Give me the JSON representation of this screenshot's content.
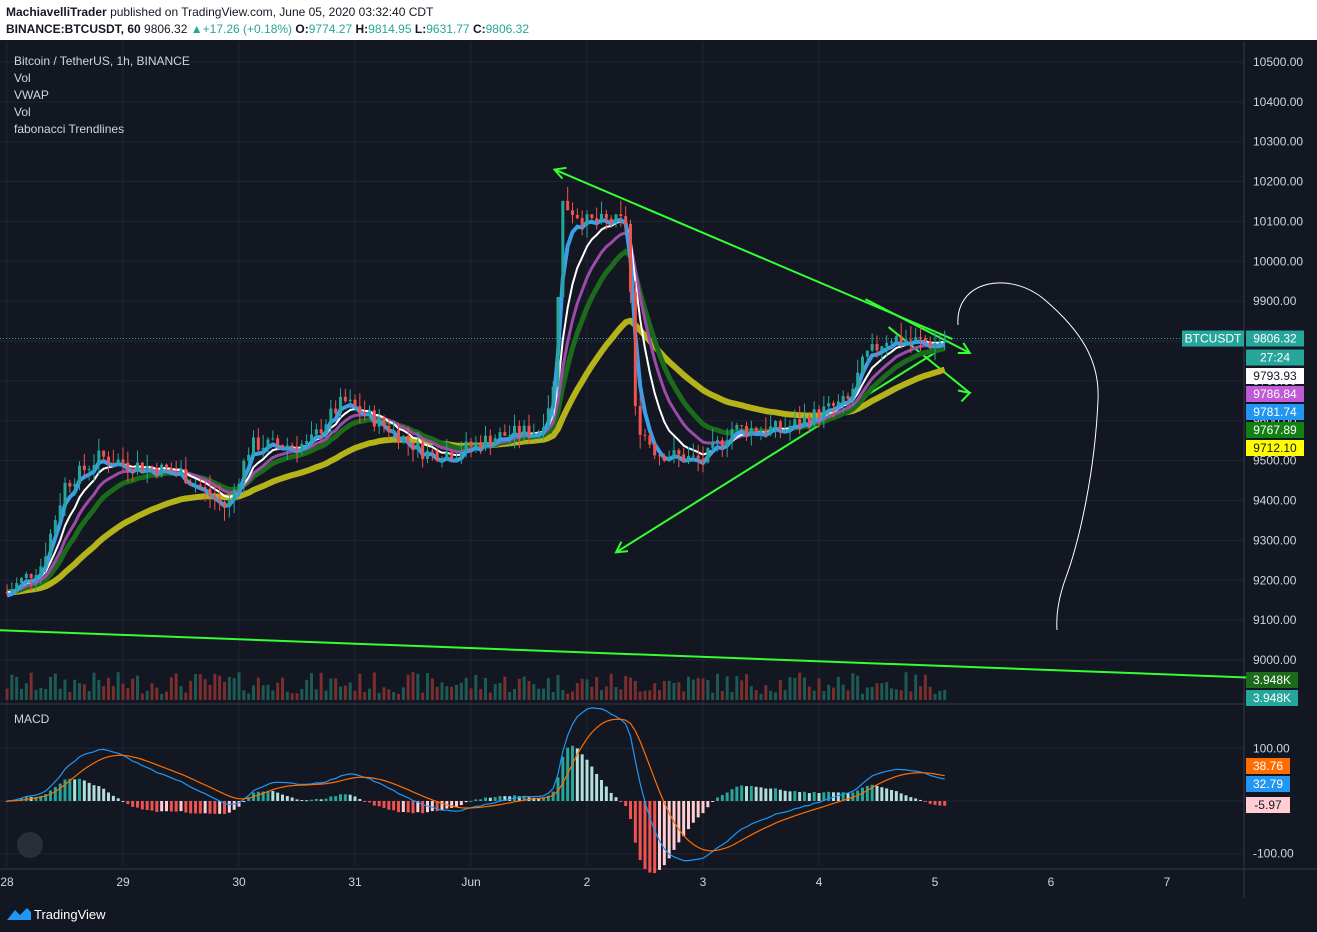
{
  "publish": {
    "author": "MachiavelliTrader",
    "text": "published on TradingView.com, June 05, 2020 03:32:40 CDT"
  },
  "symbol_line": {
    "symbol": "BINANCE:BTCUSDT, 60",
    "price": "9806.32",
    "change": "+17.26 (+0.18%)",
    "o_label": "O:",
    "o": "9774.27",
    "h_label": "H:",
    "h": "9814.95",
    "l_label": "L:",
    "l": "9631.77",
    "c_label": "C:",
    "c": "9806.32"
  },
  "legend": [
    "Bitcoin / TetherUS, 1h, BINANCE",
    "Vol",
    "VWAP",
    "Vol",
    "fabonacci Trendlines"
  ],
  "macd_label": "MACD",
  "footer_brand": "TradingView",
  "colors": {
    "background": "#131722",
    "up": "#26a69a",
    "down": "#ef5350",
    "trendline": "#33ff33",
    "vwap": "#b5b31a",
    "ema_blue": "#3a9fe8",
    "ema_white": "#ffffff",
    "ema_purple": "#9c4ca8",
    "ema_green": "#1c6b1c",
    "macd_line": "#2196f3",
    "signal_line": "#ff6d00"
  },
  "chart_data": {
    "type": "candlestick",
    "symbol": "BTCUSDT",
    "interval": "1h",
    "x_tick_labels": [
      "28",
      "29",
      "30",
      "31",
      "Jun",
      "2",
      "3",
      "4",
      "5",
      "6",
      "7"
    ],
    "y_tick_labels": [
      "10500.00",
      "10400.00",
      "10300.00",
      "10200.00",
      "10100.00",
      "10000.00",
      "9900.00",
      "9800.00",
      "9700.00",
      "9600.00",
      "9500.00",
      "9400.00",
      "9300.00",
      "9200.00",
      "9100.00",
      "9000.00"
    ],
    "ylim": [
      8900,
      10560
    ],
    "grid": true,
    "price_anchors": [
      {
        "day": 28.0,
        "price": 9170
      },
      {
        "day": 28.3,
        "price": 9240
      },
      {
        "day": 28.5,
        "price": 9440
      },
      {
        "day": 28.8,
        "price": 9510
      },
      {
        "day": 29.1,
        "price": 9490
      },
      {
        "day": 29.5,
        "price": 9470
      },
      {
        "day": 29.9,
        "price": 9380
      },
      {
        "day": 30.1,
        "price": 9540
      },
      {
        "day": 30.6,
        "price": 9540
      },
      {
        "day": 30.75,
        "price": 9600
      },
      {
        "day": 30.9,
        "price": 9650
      },
      {
        "day": 31.3,
        "price": 9580
      },
      {
        "day": 31.6,
        "price": 9520
      },
      {
        "day": 31.85,
        "price": 9520
      },
      {
        "day": 32.2,
        "price": 9560
      },
      {
        "day": 32.6,
        "price": 9580
      },
      {
        "day": 32.73,
        "price": 9700
      },
      {
        "day": 32.77,
        "price": 10150
      },
      {
        "day": 33.0,
        "price": 10100
      },
      {
        "day": 33.35,
        "price": 10100
      },
      {
        "day": 33.42,
        "price": 9600
      },
      {
        "day": 33.6,
        "price": 9520
      },
      {
        "day": 34.0,
        "price": 9500
      },
      {
        "day": 34.25,
        "price": 9580
      },
      {
        "day": 34.7,
        "price": 9580
      },
      {
        "day": 35.0,
        "price": 9620
      },
      {
        "day": 35.25,
        "price": 9650
      },
      {
        "day": 35.4,
        "price": 9760
      },
      {
        "day": 35.6,
        "price": 9810
      },
      {
        "day": 36.0,
        "price": 9795
      },
      {
        "day": 36.1,
        "price": 9806
      }
    ],
    "indicator_last_values": {
      "ema_blue": "9781.74",
      "ema_white": "9793.93",
      "ema_purple": "9786.84",
      "ema_green": "9767.89",
      "vwap": "9712.10"
    },
    "price_tags": [
      {
        "label": "BTCUSDT",
        "value": "9806.32",
        "color": "#26a69a"
      },
      {
        "value": "27:24",
        "color": "#26a69a"
      },
      {
        "value": "9793.93",
        "color": "#ffffff",
        "text_color": "#131722"
      },
      {
        "value": "9786.84",
        "color": "#c05ad6"
      },
      {
        "value": "9781.74",
        "color": "#2196f3"
      },
      {
        "value": "9767.89",
        "color": "#138013"
      },
      {
        "value": "9712.10",
        "color": "#ffff00",
        "text_color": "#131722"
      }
    ],
    "volume_tags": [
      "3.948K",
      "3.948K"
    ],
    "trendlines": [
      {
        "name": "upper",
        "from": {
          "day": 32.72,
          "price": 10230
        },
        "to": {
          "day": 36.15,
          "price": 9805
        }
      },
      {
        "name": "upper-ext",
        "from": {
          "day": 35.4,
          "price": 9905
        },
        "to": {
          "day": 36.3,
          "price": 9770
        }
      },
      {
        "name": "upper-arrow",
        "from": {
          "day": 35.6,
          "price": 9835
        },
        "to": {
          "day": 36.3,
          "price": 9670
        }
      },
      {
        "name": "lower",
        "from": {
          "day": 33.25,
          "price": 9270
        },
        "to": {
          "day": 36.05,
          "price": 9780
        }
      },
      {
        "name": "long-support",
        "from": {
          "day": 27.0,
          "price": 9085
        },
        "to": {
          "day": 38.8,
          "price": 8955
        }
      }
    ],
    "macd": {
      "y_tick_labels": [
        "100.00",
        "-100.00"
      ],
      "ylim": [
        -115,
        140
      ],
      "last_values": {
        "signal": "38.76",
        "macd": "32.79",
        "histogram": "-5.97"
      },
      "tag_colors": {
        "signal": "#ff6d00",
        "macd": "#2196f3",
        "histogram": "#ffcdd2"
      }
    }
  }
}
